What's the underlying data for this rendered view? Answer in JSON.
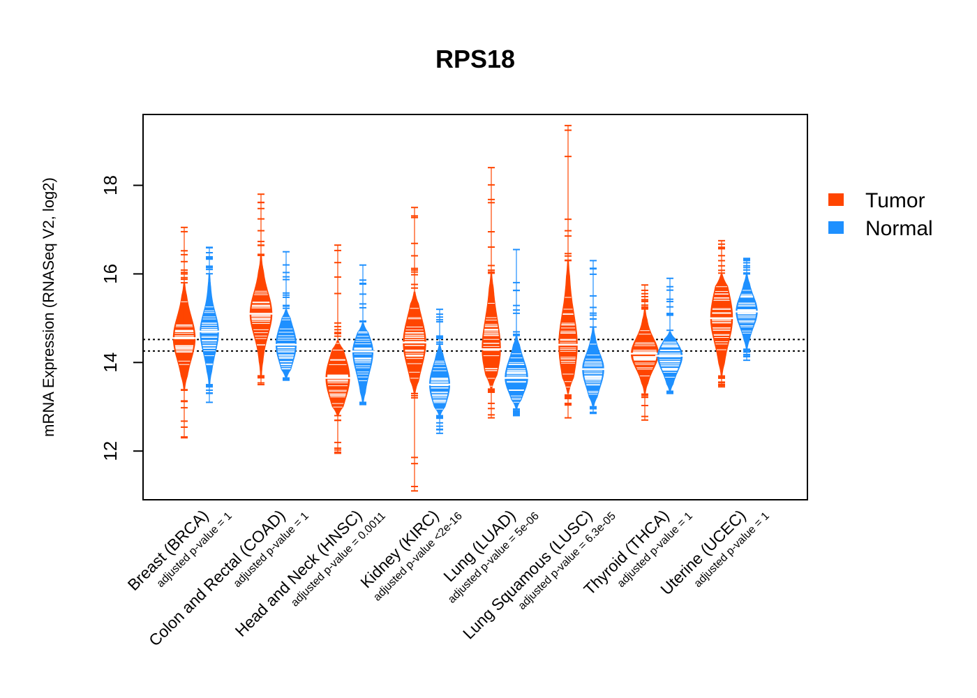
{
  "chart_data": {
    "type": "beanplot",
    "title": "RPS18",
    "ylabel": "mRNA Expression (RNASeq V2, log2)",
    "xlabel": "",
    "ylim": [
      10.9,
      19.6
    ],
    "yticks": [
      "12",
      "14",
      "16",
      "18"
    ],
    "yticks_values": [
      12,
      14,
      16,
      18
    ],
    "reference_lines": [
      14.26,
      14.52
    ],
    "colors": {
      "tumor": "#FF4500",
      "normal": "#1E90FF"
    },
    "legend": {
      "position": "right",
      "entries": [
        "Tumor",
        "Normal"
      ]
    },
    "series": [
      {
        "name": "Tumor",
        "key": "tumor"
      },
      {
        "name": "Normal",
        "key": "normal"
      }
    ],
    "categories": [
      {
        "label": "Breast (BRCA)",
        "pvalue": "adjusted p-value = 1",
        "tumor": {
          "median": 14.55,
          "q1": 14.2,
          "q3": 14.9,
          "min": 12.3,
          "max": 17.05,
          "bulk": [
            13.4,
            15.8
          ],
          "width": 0.6
        },
        "normal": {
          "median": 14.7,
          "q1": 14.35,
          "q3": 15.0,
          "min": 13.1,
          "max": 16.6,
          "bulk": [
            13.5,
            16.0
          ],
          "width": 0.5
        }
      },
      {
        "label": "Colon and Rectal (COAD)",
        "pvalue": "adjusted p-value = 1",
        "tumor": {
          "median": 15.1,
          "q1": 14.75,
          "q3": 15.45,
          "min": 13.5,
          "max": 17.8,
          "bulk": [
            13.7,
            16.4
          ],
          "width": 0.6
        },
        "normal": {
          "median": 14.4,
          "q1": 14.1,
          "q3": 14.7,
          "min": 13.6,
          "max": 16.5,
          "bulk": [
            13.65,
            15.2
          ],
          "width": 0.55
        }
      },
      {
        "label": "Head and Neck (HNSC)",
        "pvalue": "adjusted p-value = 0.0011",
        "tumor": {
          "median": 13.65,
          "q1": 13.3,
          "q3": 14.0,
          "min": 11.95,
          "max": 16.65,
          "bulk": [
            12.8,
            14.5
          ],
          "width": 0.65
        },
        "normal": {
          "median": 14.25,
          "q1": 13.9,
          "q3": 14.5,
          "min": 13.05,
          "max": 16.2,
          "bulk": [
            13.1,
            14.9
          ],
          "width": 0.55
        }
      },
      {
        "label": "Kidney (KIRC)",
        "pvalue": "adjusted p-value <2e-16",
        "tumor": {
          "median": 14.45,
          "q1": 14.05,
          "q3": 14.85,
          "min": 11.1,
          "max": 17.5,
          "bulk": [
            13.3,
            15.6
          ],
          "width": 0.62
        },
        "normal": {
          "median": 13.5,
          "q1": 13.2,
          "q3": 13.8,
          "min": 12.4,
          "max": 15.2,
          "bulk": [
            12.8,
            14.4
          ],
          "width": 0.55
        }
      },
      {
        "label": "Lung (LUAD)",
        "pvalue": "adjusted p-value = 5e-06",
        "tumor": {
          "median": 14.3,
          "q1": 13.9,
          "q3": 14.8,
          "min": 12.75,
          "max": 18.4,
          "bulk": [
            13.4,
            16.0
          ],
          "width": 0.5
        },
        "normal": {
          "median": 13.65,
          "q1": 13.4,
          "q3": 13.95,
          "min": 12.8,
          "max": 16.55,
          "bulk": [
            12.95,
            14.6
          ],
          "width": 0.62
        }
      },
      {
        "label": "Lung Squamous (LUSC)",
        "pvalue": "adjusted p-value = 6.3e-05",
        "tumor": {
          "median": 14.4,
          "q1": 13.9,
          "q3": 14.9,
          "min": 12.75,
          "max": 19.35,
          "bulk": [
            13.3,
            16.3
          ],
          "width": 0.5
        },
        "normal": {
          "median": 13.85,
          "q1": 13.55,
          "q3": 14.1,
          "min": 12.85,
          "max": 16.3,
          "bulk": [
            13.0,
            14.8
          ],
          "width": 0.58
        }
      },
      {
        "label": "Thyroid (THCA)",
        "pvalue": "adjusted p-value = 1",
        "tumor": {
          "median": 14.2,
          "q1": 13.95,
          "q3": 14.45,
          "min": 12.7,
          "max": 15.75,
          "bulk": [
            13.3,
            15.2
          ],
          "width": 0.75
        },
        "normal": {
          "median": 14.15,
          "q1": 13.9,
          "q3": 14.35,
          "min": 13.3,
          "max": 15.9,
          "bulk": [
            13.35,
            14.7
          ],
          "width": 0.68
        }
      },
      {
        "label": "Uterine (UCEC)",
        "pvalue": "adjusted p-value = 1",
        "tumor": {
          "median": 15.0,
          "q1": 14.6,
          "q3": 15.45,
          "min": 13.45,
          "max": 16.75,
          "bulk": [
            13.7,
            16.0
          ],
          "width": 0.6
        },
        "normal": {
          "median": 15.15,
          "q1": 14.9,
          "q3": 15.4,
          "min": 14.05,
          "max": 16.35,
          "bulk": [
            14.3,
            16.0
          ],
          "width": 0.58
        }
      }
    ]
  }
}
